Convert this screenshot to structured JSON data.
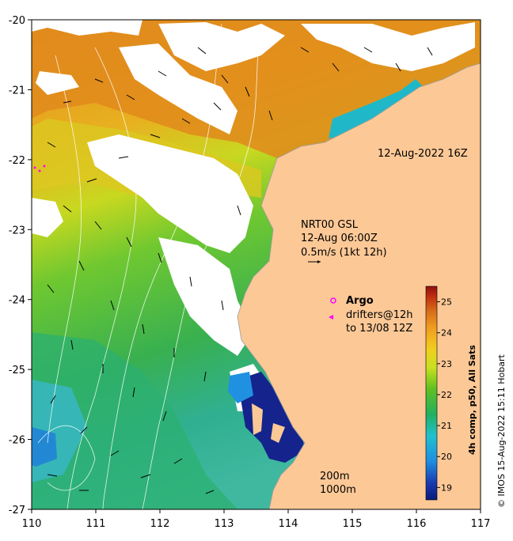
{
  "map": {
    "lon_ticks": [
      "110",
      "111",
      "112",
      "113",
      "114",
      "115",
      "116",
      "117"
    ],
    "lat_ticks": [
      "-20",
      "-21",
      "-22",
      "-23",
      "-24",
      "-25",
      "-26",
      "-27"
    ],
    "lon_range": [
      110,
      117
    ],
    "lat_range": [
      -27,
      -20
    ],
    "timestamp_label": "12-Aug-2022 16Z",
    "currents": {
      "line1": "NRT00 GSL",
      "line2": "12-Aug 06:00Z",
      "line3": "0.5m/s (1kt 12h)"
    },
    "legend": {
      "argo_label": "Argo",
      "drifters_line1": "drifters@12h",
      "drifters_line2": "to 13/08 12Z",
      "argo_color": "#ff00ff",
      "drifter_color": "#ff00ff"
    },
    "contours": {
      "label1": "200m",
      "label2": "1000m"
    },
    "colorbar": {
      "title": "4h comp, p50, All Sats",
      "ticks": [
        "19",
        "20",
        "21",
        "22",
        "23",
        "24",
        "25"
      ],
      "range": [
        18.6,
        25.5
      ]
    },
    "credit": "© IMOS 15-Aug-2022 15:11 Hobart",
    "colors": {
      "land": "#fcc896",
      "warm": "#e08a1c",
      "cold": "#14248c"
    }
  }
}
